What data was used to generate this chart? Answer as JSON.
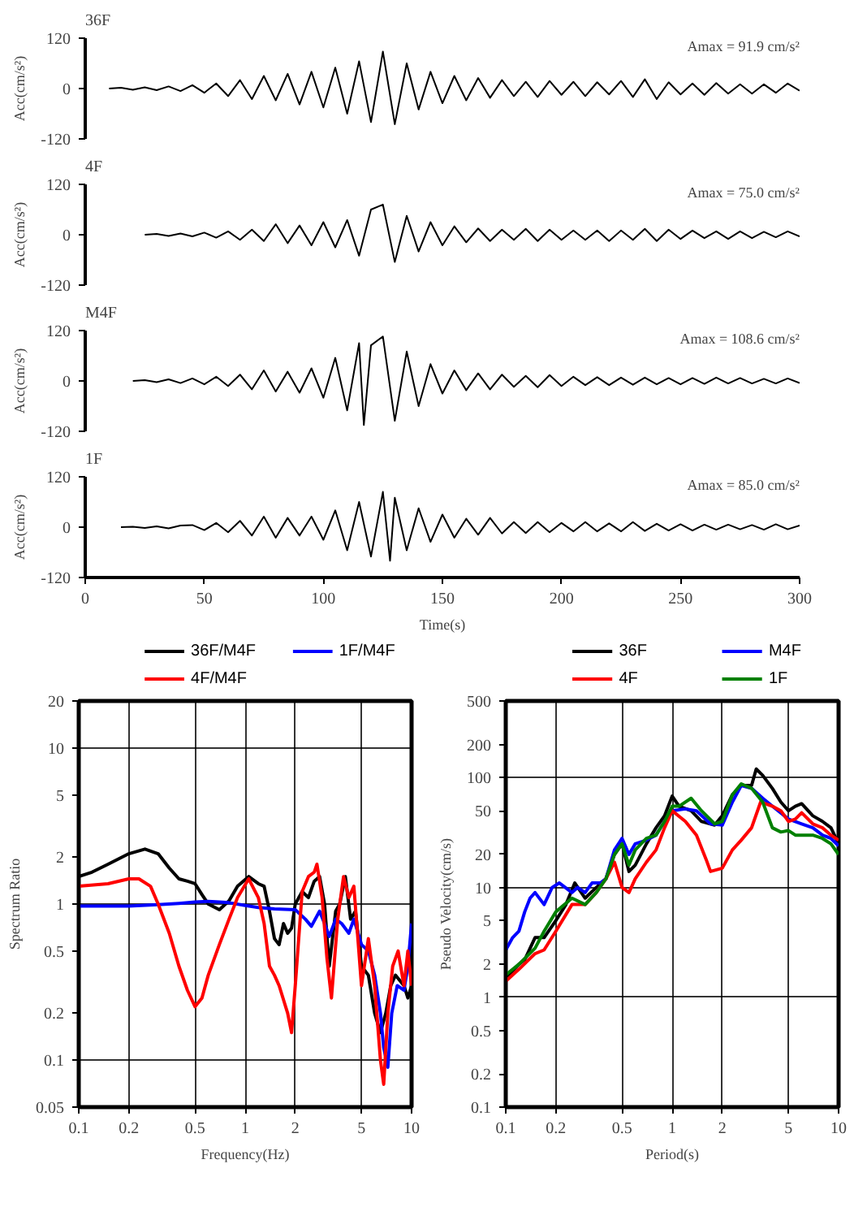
{
  "chart_data": [
    {
      "type": "line",
      "title": "36F",
      "ylabel": "Acc(cm/s²)",
      "annotations": [
        "Amax = 91.9 cm/s²"
      ],
      "xlim": [
        0,
        300
      ],
      "ylim": [
        -120,
        120
      ],
      "yticks": [
        -120,
        0,
        120
      ],
      "tick_labels": "y",
      "series": [
        {
          "color": "#000000",
          "x": [
            10,
            15,
            20,
            25,
            30,
            35,
            40,
            45,
            50,
            55,
            60,
            65,
            70,
            75,
            80,
            85,
            90,
            95,
            100,
            105,
            110,
            115,
            120,
            125,
            130,
            135,
            140,
            145,
            150,
            155,
            160,
            165,
            170,
            175,
            180,
            185,
            190,
            195,
            200,
            205,
            210,
            215,
            220,
            225,
            230,
            235,
            240,
            245,
            250,
            255,
            260,
            265,
            270,
            275,
            280,
            285,
            290,
            295,
            300
          ],
          "values": [
            0,
            2,
            -3,
            3,
            -4,
            5,
            -6,
            8,
            -10,
            12,
            -18,
            20,
            -25,
            30,
            -28,
            35,
            -38,
            40,
            -45,
            50,
            -60,
            65,
            -80,
            88,
            -85,
            60,
            -50,
            40,
            -35,
            30,
            -28,
            25,
            -22,
            20,
            -18,
            16,
            -20,
            18,
            -15,
            16,
            -18,
            15,
            -14,
            18,
            -20,
            22,
            -25,
            15,
            -14,
            12,
            -15,
            13,
            -12,
            10,
            -12,
            10,
            -10,
            12,
            -5
          ]
        }
      ]
    },
    {
      "type": "line",
      "title": "4F",
      "ylabel": "Acc(cm/s²)",
      "annotations": [
        "Amax = 75.0 cm/s²"
      ],
      "xlim": [
        0,
        300
      ],
      "ylim": [
        -120,
        120
      ],
      "yticks": [
        -120,
        0,
        120
      ],
      "tick_labels": "y",
      "series": [
        {
          "color": "#000000",
          "x": [
            25,
            30,
            35,
            40,
            45,
            50,
            55,
            60,
            65,
            70,
            75,
            80,
            85,
            90,
            95,
            100,
            105,
            110,
            115,
            120,
            125,
            130,
            135,
            140,
            145,
            150,
            155,
            160,
            165,
            170,
            175,
            180,
            185,
            190,
            195,
            200,
            205,
            210,
            215,
            220,
            225,
            230,
            235,
            240,
            245,
            250,
            255,
            260,
            265,
            270,
            275,
            280,
            285,
            290,
            295,
            300
          ],
          "values": [
            0,
            2,
            -3,
            3,
            -4,
            5,
            -7,
            8,
            -12,
            12,
            -15,
            25,
            -20,
            22,
            -25,
            30,
            -30,
            35,
            -50,
            60,
            72,
            -65,
            45,
            -40,
            30,
            -25,
            20,
            -18,
            15,
            -15,
            12,
            -12,
            14,
            -15,
            12,
            -12,
            10,
            -12,
            10,
            -15,
            10,
            -12,
            14,
            -15,
            12,
            -10,
            10,
            -8,
            8,
            -10,
            8,
            -8,
            7,
            -6,
            8,
            -4
          ]
        }
      ]
    },
    {
      "type": "line",
      "title": "M4F",
      "ylabel": "Acc(cm/s²)",
      "annotations": [
        "Amax = 108.6 cm/s²"
      ],
      "xlim": [
        0,
        300
      ],
      "ylim": [
        -120,
        120
      ],
      "yticks": [
        -120,
        0,
        120
      ],
      "tick_labels": "y",
      "series": [
        {
          "color": "#000000",
          "x": [
            20,
            25,
            30,
            35,
            40,
            45,
            50,
            55,
            60,
            65,
            70,
            75,
            80,
            85,
            90,
            95,
            100,
            105,
            110,
            115,
            117,
            120,
            125,
            130,
            135,
            140,
            145,
            150,
            155,
            160,
            165,
            170,
            175,
            180,
            185,
            190,
            195,
            200,
            205,
            210,
            215,
            220,
            225,
            230,
            235,
            240,
            245,
            250,
            255,
            260,
            265,
            270,
            275,
            280,
            285,
            290,
            295,
            300
          ],
          "values": [
            0,
            2,
            -3,
            4,
            -5,
            6,
            -8,
            10,
            -12,
            15,
            -20,
            25,
            -25,
            22,
            -28,
            30,
            -40,
            55,
            -70,
            90,
            -105,
            85,
            106,
            -95,
            70,
            -60,
            40,
            -30,
            25,
            -22,
            18,
            -20,
            15,
            -14,
            12,
            -15,
            14,
            -12,
            10,
            -10,
            9,
            -10,
            8,
            -9,
            8,
            -8,
            7,
            -8,
            7,
            -7,
            8,
            -6,
            7,
            -6,
            5,
            -6,
            6,
            -5
          ]
        }
      ]
    },
    {
      "type": "line",
      "title": "1F",
      "xlabel": "Time(s)",
      "ylabel": "Acc(cm/s²)",
      "annotations": [
        "Amax = 85.0 cm/s²"
      ],
      "xlim": [
        0,
        300
      ],
      "ylim": [
        -120,
        120
      ],
      "xticks": [
        0,
        50,
        100,
        150,
        200,
        250,
        300
      ],
      "yticks": [
        -120,
        0,
        120
      ],
      "series": [
        {
          "color": "#000000",
          "x": [
            15,
            20,
            25,
            30,
            35,
            40,
            45,
            50,
            55,
            60,
            65,
            70,
            75,
            80,
            85,
            90,
            95,
            100,
            105,
            110,
            115,
            120,
            125,
            128,
            130,
            135,
            140,
            145,
            150,
            155,
            160,
            165,
            170,
            175,
            180,
            185,
            190,
            195,
            200,
            205,
            210,
            215,
            220,
            225,
            230,
            235,
            240,
            245,
            250,
            255,
            260,
            265,
            270,
            275,
            280,
            285,
            290,
            295,
            300
          ],
          "values": [
            0,
            1,
            -2,
            2,
            -3,
            4,
            5,
            -7,
            10,
            -12,
            15,
            -20,
            25,
            -25,
            22,
            -20,
            25,
            -30,
            40,
            -55,
            60,
            -70,
            84,
            -80,
            70,
            -55,
            45,
            -35,
            30,
            -25,
            20,
            -18,
            22,
            -15,
            12,
            -14,
            12,
            -12,
            10,
            -10,
            12,
            -10,
            9,
            -10,
            12,
            -9,
            8,
            -8,
            7,
            -8,
            6,
            -6,
            6,
            -5,
            5,
            -6,
            7,
            -5,
            4
          ]
        }
      ]
    },
    {
      "type": "line",
      "xlabel": "Frequency(Hz)",
      "ylabel": "Spectrum Ratio",
      "log": "xy",
      "grid": true,
      "legend": "top",
      "xlim": [
        0.1,
        10
      ],
      "ylim": [
        0.05,
        20
      ],
      "xticks": [
        0.1,
        0.2,
        0.5,
        1,
        2,
        5,
        10
      ],
      "yticks": [
        0.05,
        0.1,
        0.2,
        0.5,
        1,
        2,
        5,
        10,
        20
      ],
      "series": [
        {
          "name": "36F/M4F",
          "color": "#000000",
          "x": [
            0.1,
            0.12,
            0.15,
            0.2,
            0.25,
            0.3,
            0.35,
            0.4,
            0.45,
            0.5,
            0.55,
            0.6,
            0.7,
            0.8,
            0.9,
            1.05,
            1.2,
            1.3,
            1.4,
            1.5,
            1.6,
            1.7,
            1.8,
            1.9,
            2.0,
            2.2,
            2.4,
            2.6,
            2.8,
            3.0,
            3.2,
            3.5,
            3.7,
            4.0,
            4.3,
            4.6,
            5.0,
            5.5,
            6.0,
            6.5,
            7,
            7.5,
            8,
            9,
            9.5,
            10
          ],
          "values": [
            1.5,
            1.6,
            1.8,
            2.1,
            2.25,
            2.1,
            1.7,
            1.45,
            1.4,
            1.35,
            1.15,
            1.0,
            0.92,
            1.05,
            1.3,
            1.5,
            1.35,
            1.3,
            0.9,
            0.6,
            0.55,
            0.75,
            0.65,
            0.7,
            1.0,
            1.2,
            1.1,
            1.4,
            1.5,
            1.0,
            0.4,
            0.9,
            1.0,
            1.5,
            0.8,
            0.9,
            0.4,
            0.35,
            0.2,
            0.15,
            0.2,
            0.3,
            0.35,
            0.3,
            0.25,
            0.3
          ]
        },
        {
          "name": "1F/M4F",
          "color": "#0000ff",
          "x": [
            0.1,
            0.2,
            0.3,
            0.4,
            0.5,
            0.6,
            0.7,
            0.8,
            1.0,
            1.2,
            1.5,
            2.0,
            2.3,
            2.5,
            2.8,
            3.0,
            3.2,
            3.5,
            3.8,
            4.2,
            4.5,
            5.0,
            5.5,
            6.0,
            6.5,
            6.8,
            7.2,
            7.6,
            8.2,
            9,
            9.5,
            10
          ],
          "values": [
            0.97,
            0.97,
            0.99,
            1.01,
            1.03,
            1.04,
            1.03,
            1.02,
            0.98,
            0.95,
            0.93,
            0.92,
            0.8,
            0.72,
            0.9,
            0.75,
            0.62,
            0.8,
            0.75,
            0.65,
            0.8,
            0.55,
            0.5,
            0.35,
            0.2,
            0.12,
            0.09,
            0.2,
            0.3,
            0.28,
            0.4,
            0.75
          ]
        },
        {
          "name": "4F/M4F",
          "color": "#ff0000",
          "x": [
            0.1,
            0.15,
            0.2,
            0.23,
            0.27,
            0.3,
            0.35,
            0.4,
            0.45,
            0.5,
            0.55,
            0.6,
            0.7,
            0.8,
            0.9,
            1.05,
            1.2,
            1.3,
            1.4,
            1.5,
            1.6,
            1.8,
            1.9,
            2.0,
            2.2,
            2.4,
            2.6,
            2.7,
            2.9,
            3.1,
            3.3,
            3.6,
            3.9,
            4.2,
            4.5,
            5.0,
            5.5,
            6.0,
            6.5,
            6.8,
            7.2,
            7.7,
            8.3,
            9,
            9.5,
            10
          ],
          "values": [
            1.3,
            1.35,
            1.45,
            1.45,
            1.3,
            1.0,
            0.65,
            0.4,
            0.28,
            0.22,
            0.25,
            0.35,
            0.55,
            0.8,
            1.1,
            1.45,
            1.1,
            0.75,
            0.4,
            0.35,
            0.3,
            0.2,
            0.15,
            0.3,
            1.2,
            1.5,
            1.6,
            1.8,
            1.1,
            0.45,
            0.25,
            0.8,
            1.5,
            1.1,
            1.3,
            0.3,
            0.6,
            0.3,
            0.1,
            0.07,
            0.2,
            0.4,
            0.5,
            0.3,
            0.5,
            0.3
          ]
        }
      ]
    },
    {
      "type": "line",
      "xlabel": "Period(s)",
      "ylabel": "Pseudo Velocity(cm/s)",
      "log": "xy",
      "grid": true,
      "legend": "top",
      "xlim": [
        0.1,
        10
      ],
      "ylim": [
        0.1,
        500
      ],
      "xticks": [
        0.1,
        0.2,
        0.5,
        1,
        2,
        5,
        10
      ],
      "yticks": [
        0.1,
        0.2,
        0.5,
        1,
        2,
        5,
        10,
        20,
        50,
        100,
        200,
        500
      ],
      "series": [
        {
          "name": "36F",
          "color": "#000000",
          "x": [
            0.1,
            0.12,
            0.13,
            0.15,
            0.17,
            0.2,
            0.23,
            0.26,
            0.3,
            0.35,
            0.4,
            0.45,
            0.5,
            0.55,
            0.6,
            0.7,
            0.8,
            0.9,
            1.0,
            1.1,
            1.3,
            1.5,
            1.8,
            2.0,
            2.3,
            2.6,
            3.0,
            3.2,
            3.5,
            4,
            4.5,
            5,
            5.5,
            6,
            7,
            8,
            9,
            10
          ],
          "values": [
            1.5,
            2.0,
            2.2,
            3.5,
            3.5,
            5,
            7,
            11,
            8,
            10,
            12,
            20,
            25,
            14,
            16,
            25,
            35,
            45,
            68,
            55,
            50,
            40,
            37,
            45,
            70,
            85,
            85,
            120,
            105,
            80,
            60,
            50,
            55,
            58,
            45,
            40,
            35,
            25
          ]
        },
        {
          "name": "M4F",
          "color": "#0000ff",
          "x": [
            0.1,
            0.11,
            0.12,
            0.13,
            0.14,
            0.15,
            0.17,
            0.19,
            0.21,
            0.25,
            0.27,
            0.3,
            0.33,
            0.37,
            0.4,
            0.45,
            0.5,
            0.55,
            0.6,
            0.7,
            0.8,
            0.9,
            1.0,
            1.2,
            1.4,
            1.7,
            2.0,
            2.3,
            2.6,
            3.0,
            3.5,
            4,
            5,
            6,
            7,
            8,
            9,
            10
          ],
          "values": [
            2.7,
            3.5,
            4,
            6,
            8,
            9,
            7,
            10,
            11,
            9,
            10,
            9,
            11,
            11,
            12,
            22,
            28,
            20,
            25,
            27,
            30,
            40,
            50,
            52,
            50,
            38,
            37,
            60,
            85,
            80,
            65,
            55,
            42,
            38,
            35,
            30,
            28,
            24
          ]
        },
        {
          "name": "4F",
          "color": "#ff0000",
          "x": [
            0.1,
            0.12,
            0.15,
            0.17,
            0.2,
            0.25,
            0.3,
            0.35,
            0.4,
            0.45,
            0.5,
            0.55,
            0.6,
            0.7,
            0.8,
            0.9,
            1.0,
            1.2,
            1.4,
            1.6,
            1.7,
            2.0,
            2.3,
            2.6,
            3.0,
            3.4,
            4,
            4.5,
            5,
            5.5,
            6,
            7,
            8,
            9,
            10
          ],
          "values": [
            1.4,
            1.8,
            2.5,
            2.7,
            4,
            7,
            7,
            9,
            12,
            17,
            10,
            9,
            12,
            17,
            22,
            35,
            50,
            40,
            30,
            18,
            14,
            15,
            22,
            27,
            35,
            60,
            55,
            50,
            40,
            42,
            48,
            38,
            35,
            30,
            27
          ]
        },
        {
          "name": "1F",
          "color": "#008000",
          "x": [
            0.1,
            0.12,
            0.15,
            0.17,
            0.2,
            0.25,
            0.3,
            0.35,
            0.4,
            0.45,
            0.5,
            0.55,
            0.6,
            0.7,
            0.8,
            0.9,
            1.0,
            1.1,
            1.3,
            1.5,
            1.8,
            2.0,
            2.3,
            2.6,
            3.0,
            3.5,
            4,
            4.5,
            5,
            5.5,
            6,
            7,
            8,
            9,
            10
          ],
          "values": [
            1.6,
            2.0,
            2.8,
            4,
            6,
            8,
            7,
            9,
            12,
            20,
            25,
            16,
            22,
            28,
            30,
            40,
            55,
            55,
            65,
            50,
            38,
            40,
            70,
            88,
            80,
            60,
            35,
            32,
            33,
            30,
            30,
            30,
            28,
            25,
            20
          ]
        }
      ]
    }
  ]
}
